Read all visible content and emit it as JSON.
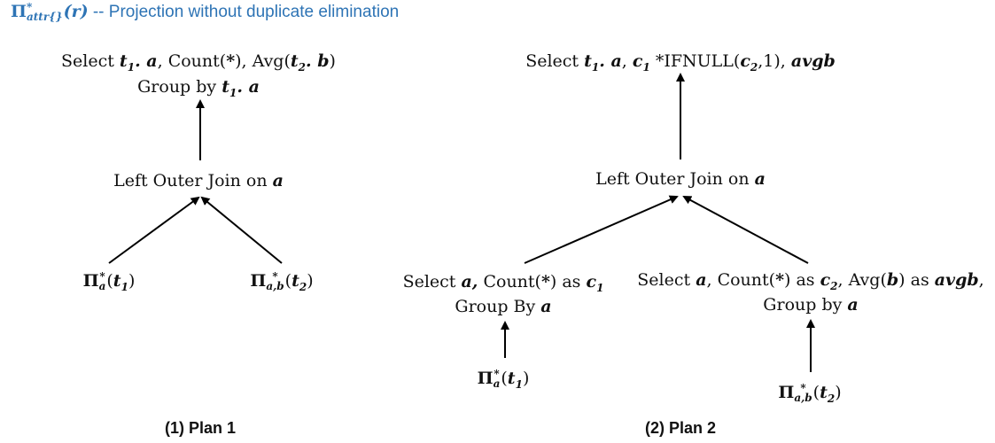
{
  "header": {
    "pi_symbol": "Π",
    "pi_star": "*",
    "pi_subscript": "attr{}",
    "pi_arg": "(r)",
    "description": " -- Projection without  duplicate elimination"
  },
  "plan1": {
    "caption": "(1) Plan 1",
    "top_line1": {
      "p1": "Select ",
      "m1": "t",
      "s1": "1",
      "m2": ". a",
      "p2": ", Count(",
      "m3": "*",
      "p3": "), Avg(",
      "m4": "t",
      "s2": "2",
      "m5": ". b",
      "p4": ")"
    },
    "top_line2": {
      "p1": "Group by ",
      "m1": "t",
      "s1": "1",
      "m2": ". a"
    },
    "join": {
      "label": "Left Outer Join on ",
      "attr": "a"
    },
    "left_leaf": {
      "pi": "Π",
      "star": "*",
      "sub": "a",
      "arg_open": "(",
      "t": "t",
      "t_sub": "1",
      "arg_close": ")"
    },
    "right_leaf": {
      "pi": "Π",
      "star": "*",
      "sub": "a,b",
      "arg_open": "(",
      "t": "t",
      "t_sub": "2",
      "arg_close": ")"
    }
  },
  "plan2": {
    "caption": "(2) Plan 2",
    "top_line": {
      "p1": "Select ",
      "m1": "t",
      "s1": "1",
      "m2": ". a",
      "p2": ",  ",
      "m3": "c",
      "s2": "1",
      "p3": " *IFNULL(",
      "m4": "c",
      "s3": "2",
      "p4": ",1), ",
      "m5": "avgb"
    },
    "join": {
      "label": "Left Outer Join on ",
      "attr": "a"
    },
    "left_agg_line1": {
      "p1": "Select ",
      "m1": "a,",
      "p2": " Count(",
      "m2": "*",
      "p3": ") as ",
      "m3": "c",
      "s1": "1"
    },
    "left_agg_line2": {
      "p1": "Group By ",
      "m1": "a"
    },
    "right_agg_line1": {
      "p1": "Select ",
      "m1": "a",
      "p2": ",  Count(",
      "m2": "*",
      "p3": ") as ",
      "m3": "c",
      "s1": "2",
      "p4": ", Avg(",
      "m4": "b",
      "p5": ") as ",
      "m5": "avgb",
      "p6": ","
    },
    "right_agg_line2": {
      "p1": "Group by ",
      "m1": "a"
    },
    "left_leaf": {
      "pi": "Π",
      "star": "*",
      "sub": "a",
      "arg_open": "(",
      "t": "t",
      "t_sub": "1",
      "arg_close": ")"
    },
    "right_leaf": {
      "pi": "Π",
      "star": "*",
      "sub": "a,b",
      "arg_open": "(",
      "t": "t",
      "t_sub": "2",
      "arg_close": ")"
    }
  },
  "colors": {
    "header_blue": "#2e74b5",
    "text": "#111111",
    "arrow": "#000000"
  }
}
